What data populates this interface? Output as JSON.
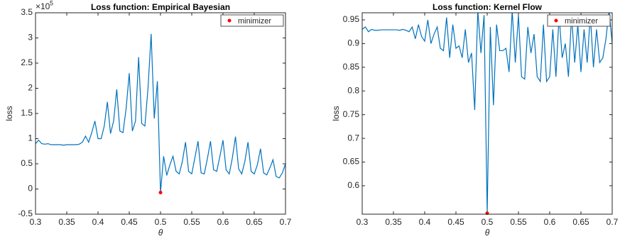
{
  "chart_data": [
    {
      "type": "line",
      "title": "Loss function: Empirical Bayesian",
      "xlabel": "θ",
      "ylabel": "loss",
      "y_scale_base": "×10",
      "y_scale_exponent": "5",
      "x": [
        0.3,
        0.305,
        0.31,
        0.315,
        0.32,
        0.325,
        0.33,
        0.335,
        0.34,
        0.345,
        0.35,
        0.355,
        0.36,
        0.365,
        0.37,
        0.375,
        0.38,
        0.385,
        0.39,
        0.395,
        0.4,
        0.405,
        0.41,
        0.415,
        0.42,
        0.425,
        0.43,
        0.435,
        0.44,
        0.445,
        0.45,
        0.455,
        0.46,
        0.465,
        0.47,
        0.475,
        0.48,
        0.485,
        0.49,
        0.495,
        0.5,
        0.505,
        0.51,
        0.515,
        0.52,
        0.525,
        0.53,
        0.535,
        0.54,
        0.545,
        0.55,
        0.555,
        0.56,
        0.565,
        0.57,
        0.575,
        0.58,
        0.585,
        0.59,
        0.595,
        0.6,
        0.605,
        0.61,
        0.615,
        0.62,
        0.625,
        0.63,
        0.635,
        0.64,
        0.645,
        0.65,
        0.655,
        0.66,
        0.665,
        0.67,
        0.675,
        0.68,
        0.685,
        0.69,
        0.695,
        0.7
      ],
      "values": [
        0.9,
        0.97,
        0.9,
        0.89,
        0.9,
        0.88,
        0.88,
        0.88,
        0.88,
        0.87,
        0.88,
        0.88,
        0.88,
        0.88,
        0.89,
        0.93,
        1.05,
        0.93,
        1.12,
        1.35,
        1.0,
        1.0,
        1.25,
        1.73,
        1.1,
        1.35,
        1.98,
        1.15,
        1.12,
        1.6,
        2.3,
        1.15,
        1.35,
        2.62,
        1.3,
        1.25,
        2.0,
        3.08,
        1.4,
        2.14,
        -0.07,
        0.65,
        0.27,
        0.48,
        0.65,
        0.35,
        0.3,
        0.55,
        0.93,
        0.35,
        0.3,
        0.62,
        0.95,
        0.32,
        0.3,
        0.6,
        0.95,
        0.38,
        0.35,
        0.65,
        0.97,
        0.38,
        0.3,
        0.62,
        1.04,
        0.4,
        0.3,
        0.55,
        0.93,
        0.35,
        0.3,
        0.48,
        0.8,
        0.32,
        0.28,
        0.42,
        0.58,
        0.25,
        0.22,
        0.32,
        0.5
      ],
      "color": "#0072bd",
      "minimizer": {
        "name": "minimizer",
        "x": 0.5,
        "y": -0.07,
        "color": "#ff0000"
      },
      "legend": "northeast",
      "xlim": [
        0.3,
        0.7
      ],
      "xticks": [
        0.3,
        0.35,
        0.4,
        0.45,
        0.5,
        0.55,
        0.6,
        0.65,
        0.7
      ],
      "ylim": [
        -0.5,
        3.5
      ],
      "yticks": [
        -0.5,
        0,
        0.5,
        1,
        1.5,
        2,
        2.5,
        3,
        3.5
      ]
    },
    {
      "type": "line",
      "title": "Loss function: Kernel Flow",
      "xlabel": "θ",
      "ylabel": "loss",
      "x": [
        0.3,
        0.305,
        0.31,
        0.315,
        0.32,
        0.325,
        0.33,
        0.335,
        0.34,
        0.345,
        0.35,
        0.355,
        0.36,
        0.365,
        0.37,
        0.375,
        0.38,
        0.385,
        0.39,
        0.395,
        0.4,
        0.405,
        0.41,
        0.415,
        0.42,
        0.425,
        0.43,
        0.435,
        0.44,
        0.445,
        0.45,
        0.455,
        0.46,
        0.465,
        0.47,
        0.475,
        0.48,
        0.485,
        0.49,
        0.495,
        0.5,
        0.505,
        0.51,
        0.515,
        0.52,
        0.525,
        0.53,
        0.535,
        0.54,
        0.545,
        0.55,
        0.555,
        0.56,
        0.565,
        0.57,
        0.575,
        0.58,
        0.585,
        0.59,
        0.595,
        0.6,
        0.605,
        0.61,
        0.615,
        0.62,
        0.625,
        0.63,
        0.635,
        0.64,
        0.645,
        0.65,
        0.655,
        0.66,
        0.665,
        0.67,
        0.675,
        0.68,
        0.685,
        0.69,
        0.695,
        0.7
      ],
      "values": [
        0.93,
        0.935,
        0.925,
        0.93,
        0.928,
        0.928,
        0.929,
        0.929,
        0.929,
        0.929,
        0.929,
        0.929,
        0.928,
        0.93,
        0.928,
        0.925,
        0.935,
        0.91,
        0.94,
        0.915,
        0.905,
        0.95,
        0.9,
        0.92,
        0.935,
        0.89,
        0.885,
        0.955,
        0.87,
        0.94,
        0.89,
        0.895,
        0.87,
        0.93,
        0.86,
        0.88,
        0.76,
        0.97,
        0.88,
        0.96,
        0.542,
        0.935,
        0.77,
        0.94,
        0.885,
        0.885,
        0.89,
        0.84,
        0.97,
        0.86,
        0.96,
        0.83,
        0.825,
        0.935,
        0.88,
        0.92,
        0.83,
        0.82,
        0.94,
        0.82,
        0.83,
        0.93,
        0.83,
        0.96,
        0.87,
        0.9,
        0.83,
        0.96,
        0.86,
        0.94,
        0.84,
        0.93,
        0.86,
        0.96,
        0.85,
        0.93,
        0.86,
        0.87,
        0.91,
        0.97,
        0.9
      ],
      "color": "#0072bd",
      "minimizer": {
        "name": "minimizer",
        "x": 0.5,
        "y": 0.542,
        "color": "#ff0000"
      },
      "legend": "northeast",
      "xlim": [
        0.3,
        0.7
      ],
      "xticks": [
        0.3,
        0.35,
        0.4,
        0.45,
        0.5,
        0.55,
        0.6,
        0.65,
        0.7
      ],
      "ylim": [
        0.54,
        0.965
      ],
      "yticks": [
        0.6,
        0.65,
        0.7,
        0.75,
        0.8,
        0.85,
        0.9,
        0.95
      ]
    }
  ]
}
